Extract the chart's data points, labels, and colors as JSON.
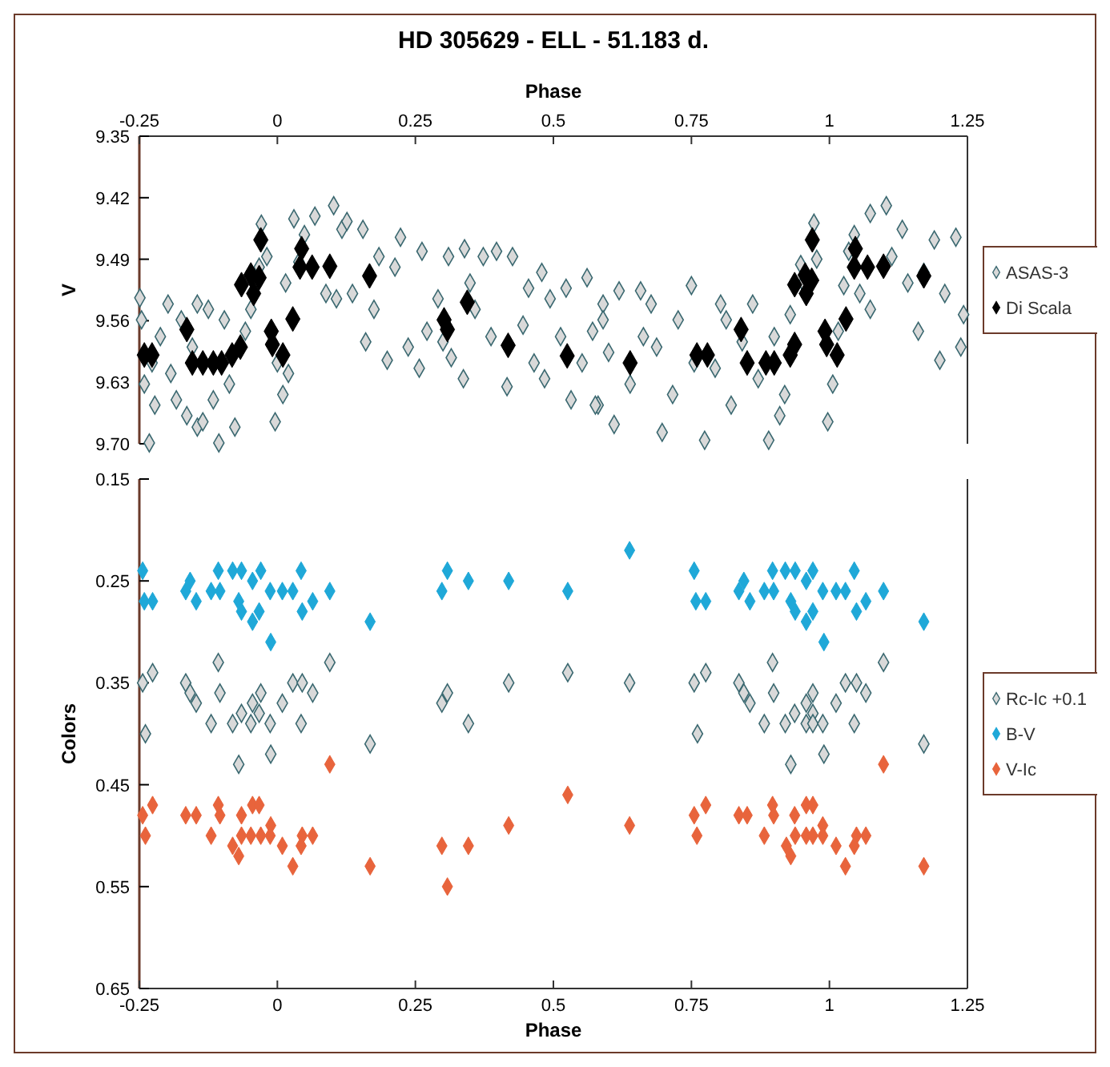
{
  "chart_data": [
    {
      "type": "scatter",
      "title": "HD 305629 - ELL - 51.183 d.",
      "xlabel": "Phase",
      "xlim": [
        -0.25,
        1.25
      ],
      "xticks": [
        -0.25,
        0,
        0.25,
        0.5,
        0.75,
        1,
        1.25
      ],
      "ylabel": "V",
      "ylim": [
        9.7,
        9.35
      ],
      "yticks": [
        9.35,
        9.42,
        9.49,
        9.56,
        9.63,
        {
          "value": 9.7,
          "label": "9.70"
        }
      ],
      "marker": "diamond",
      "legend": "right",
      "series": [
        {
          "name": "ASAS-3",
          "color": "#d9d9d9",
          "x": [
            -0.249,
            -0.232,
            -0.246,
            -0.241,
            -0.222,
            -0.212,
            -0.227,
            -0.198,
            -0.174,
            -0.145,
            -0.183,
            -0.164,
            -0.145,
            -0.193,
            -0.154,
            -0.135,
            -0.106,
            -0.077,
            -0.125,
            -0.096,
            -0.087,
            -0.116,
            -0.029,
            -0.019,
            -0.033,
            -0.048,
            -0.004,
            0.01,
            0.02,
            -0.058,
            0.0,
            0.015,
            0.03,
            0.068,
            0.102,
            0.049,
            0.088,
            0.039,
            0.117,
            0.107,
            0.126,
            0.155,
            0.184,
            0.16,
            0.199,
            0.213,
            0.175,
            0.136,
            0.223,
            0.262,
            0.271,
            0.3,
            0.237,
            0.257,
            0.291,
            0.31,
            0.339,
            0.373,
            0.397,
            0.337,
            0.315,
            0.358,
            0.387,
            0.349,
            0.426,
            0.416,
            0.445,
            0.465,
            0.484,
            0.479,
            0.494,
            0.455,
            0.532,
            0.561,
            0.581,
            0.59,
            0.513,
            0.552,
            0.571,
            0.523,
            0.576,
            0.61,
            0.619,
            0.658,
            0.59,
            0.639,
            0.6,
            0.663,
            0.697,
            0.75,
            0.677,
            0.716,
            0.726,
            0.755,
            0.687,
            0.774,
            0.803,
            0.861,
            0.822,
            0.793,
            0.842,
            0.813,
            0.89,
            0.91,
            0.871,
            0.9,
            0.929,
            0.948,
            0.953,
            0.919,
            0.972,
            0.977,
            0.997,
            1.006,
            1.026,
            1.035,
            1.016,
            1.045,
            1.074,
            1.103,
            1.132,
            1.055,
            1.074,
            1.113,
            1.142,
            1.161,
            1.2,
            1.238,
            1.19,
            1.229,
            1.209,
            1.243,
            1.171
          ],
          "values": [
            9.534,
            9.699,
            9.559,
            9.632,
            9.656,
            9.578,
            9.608,
            9.541,
            9.559,
            9.541,
            9.65,
            9.668,
            9.681,
            9.62,
            9.59,
            9.675,
            9.699,
            9.681,
            9.547,
            9.559,
            9.632,
            9.65,
            9.45,
            9.487,
            9.499,
            9.547,
            9.675,
            9.644,
            9.62,
            9.572,
            9.608,
            9.517,
            9.444,
            9.441,
            9.429,
            9.462,
            9.529,
            9.493,
            9.456,
            9.535,
            9.447,
            9.456,
            9.487,
            9.584,
            9.605,
            9.499,
            9.547,
            9.529,
            9.465,
            9.481,
            9.572,
            9.584,
            9.59,
            9.614,
            9.535,
            9.487,
            9.478,
            9.487,
            9.481,
            9.626,
            9.602,
            9.547,
            9.578,
            9.517,
            9.487,
            9.635,
            9.565,
            9.608,
            9.626,
            9.505,
            9.535,
            9.523,
            9.65,
            9.511,
            9.656,
            9.541,
            9.578,
            9.608,
            9.572,
            9.523,
            9.656,
            9.678,
            9.526,
            9.526,
            9.559,
            9.632,
            9.596,
            9.578,
            9.687,
            9.52,
            9.541,
            9.644,
            9.559,
            9.608,
            9.59,
            9.696,
            9.541,
            9.541,
            9.656,
            9.614,
            9.584,
            9.559,
            9.696,
            9.668,
            9.626,
            9.578,
            9.553,
            9.496,
            9.517,
            9.644,
            9.449,
            9.49,
            9.675,
            9.632,
            9.52,
            9.481,
            9.572,
            9.462,
            9.438,
            9.429,
            9.456,
            9.529,
            9.547,
            9.487,
            9.517,
            9.572,
            9.605,
            9.59,
            9.468,
            9.465,
            9.529,
            9.553,
            9.505
          ]
        },
        {
          "name": "Di Scala",
          "color": "#000000",
          "x": [
            -0.241,
            -0.227,
            -0.164,
            -0.154,
            -0.135,
            -0.116,
            -0.101,
            -0.082,
            -0.067,
            -0.065,
            -0.048,
            -0.033,
            -0.043,
            -0.03,
            -0.011,
            -0.009,
            0.01,
            0.028,
            0.044,
            0.041,
            0.063,
            0.095,
            0.167,
            0.302,
            0.308,
            0.344,
            0.418,
            0.525,
            0.639,
            0.76,
            0.779,
            0.84,
            0.851,
            0.885,
            0.9,
            0.929,
            0.937,
            0.937,
            0.956,
            0.968,
            0.958,
            0.969,
            0.992,
            0.995,
            1.014,
            1.03,
            1.047,
            1.045,
            1.069,
            1.098,
            1.171
          ],
          "values": [
            9.599,
            9.599,
            9.57,
            9.608,
            9.608,
            9.608,
            9.608,
            9.599,
            9.59,
            9.519,
            9.508,
            9.511,
            9.529,
            9.468,
            9.572,
            9.587,
            9.599,
            9.558,
            9.478,
            9.499,
            9.499,
            9.498,
            9.509,
            9.559,
            9.57,
            9.539,
            9.588,
            9.6,
            9.608,
            9.599,
            9.599,
            9.57,
            9.608,
            9.608,
            9.608,
            9.599,
            9.587,
            9.519,
            9.508,
            9.514,
            9.529,
            9.468,
            9.572,
            9.587,
            9.599,
            9.558,
            9.478,
            9.499,
            9.499,
            9.498,
            9.509
          ]
        }
      ]
    },
    {
      "type": "scatter",
      "xlabel": "Phase",
      "xlim": [
        -0.25,
        1.25
      ],
      "xticks": [
        -0.25,
        0,
        0.25,
        0.5,
        0.75,
        1,
        1.25
      ],
      "ylabel": "Colors",
      "ylim": [
        0.65,
        0.15
      ],
      "yticks": [
        0.15,
        0.25,
        0.35,
        0.45,
        0.55,
        0.65
      ],
      "marker": "diamond",
      "legend": "right",
      "series": [
        {
          "name": "Rc-Ic +0.1",
          "color": "#d9d9d9",
          "x": [
            -0.107,
            0.095,
            -0.226,
            0.526,
            -0.244,
            -0.166,
            0.028,
            0.045,
            0.419,
            -0.158,
            -0.104,
            -0.03,
            0.064,
            0.308,
            -0.147,
            -0.045,
            0.009,
            0.298,
            -0.065,
            -0.033,
            -0.12,
            -0.081,
            -0.048,
            -0.013,
            0.043,
            0.346,
            -0.239,
            0.168,
            -0.012,
            -0.07,
            0.897,
            1.098,
            0.776,
            0.638,
            0.755,
            0.836,
            1.029,
            1.049,
            0.845,
            0.899,
            0.97,
            1.066,
            0.856,
            0.958,
            1.012,
            0.937,
            0.97,
            0.882,
            0.92,
            0.958,
            0.97,
            0.988,
            1.045,
            0.761,
            1.171,
            0.99,
            0.93
          ],
          "values": [
            0.33,
            0.33,
            0.34,
            0.34,
            0.35,
            0.35,
            0.35,
            0.35,
            0.35,
            0.36,
            0.36,
            0.36,
            0.36,
            0.36,
            0.37,
            0.37,
            0.37,
            0.37,
            0.38,
            0.38,
            0.39,
            0.39,
            0.39,
            0.39,
            0.39,
            0.39,
            0.4,
            0.41,
            0.42,
            0.43,
            0.33,
            0.33,
            0.34,
            0.35,
            0.35,
            0.35,
            0.35,
            0.35,
            0.36,
            0.36,
            0.36,
            0.36,
            0.37,
            0.37,
            0.37,
            0.38,
            0.38,
            0.39,
            0.39,
            0.39,
            0.39,
            0.39,
            0.39,
            0.4,
            0.41,
            0.42,
            0.43
          ]
        },
        {
          "name": "B-V",
          "color": "#1fa8d8",
          "x": [
            -0.244,
            -0.107,
            -0.081,
            -0.065,
            -0.03,
            0.043,
            0.308,
            -0.158,
            -0.045,
            0.346,
            0.419,
            -0.166,
            -0.12,
            -0.104,
            -0.013,
            0.009,
            0.028,
            0.095,
            0.298,
            0.526,
            -0.241,
            -0.226,
            -0.147,
            -0.07,
            0.064,
            -0.065,
            -0.033,
            0.045,
            -0.045,
            0.168,
            -0.012,
            0.638,
            0.755,
            0.897,
            0.92,
            0.938,
            0.97,
            1.045,
            0.845,
            0.958,
            0.836,
            0.882,
            0.899,
            0.988,
            1.012,
            1.029,
            1.098,
            0.758,
            0.776,
            0.856,
            0.93,
            1.066,
            0.938,
            0.97,
            1.049,
            0.958,
            1.171,
            0.99
          ],
          "values": [
            0.24,
            0.24,
            0.24,
            0.24,
            0.24,
            0.24,
            0.24,
            0.25,
            0.25,
            0.25,
            0.25,
            0.26,
            0.26,
            0.26,
            0.26,
            0.26,
            0.26,
            0.26,
            0.26,
            0.26,
            0.27,
            0.27,
            0.27,
            0.27,
            0.27,
            0.28,
            0.28,
            0.28,
            0.29,
            0.29,
            0.31,
            0.22,
            0.24,
            0.24,
            0.24,
            0.24,
            0.24,
            0.24,
            0.25,
            0.25,
            0.26,
            0.26,
            0.26,
            0.26,
            0.26,
            0.26,
            0.26,
            0.27,
            0.27,
            0.27,
            0.27,
            0.27,
            0.28,
            0.28,
            0.28,
            0.29,
            0.29,
            0.31
          ]
        },
        {
          "name": "V-Ic",
          "color": "#e8643c",
          "x": [
            0.095,
            0.526,
            -0.226,
            -0.107,
            -0.045,
            -0.033,
            -0.244,
            -0.166,
            -0.147,
            -0.104,
            -0.065,
            -0.012,
            0.419,
            -0.239,
            -0.12,
            -0.065,
            -0.048,
            -0.03,
            -0.013,
            0.045,
            0.064,
            -0.081,
            0.009,
            0.043,
            0.298,
            0.346,
            -0.07,
            0.028,
            0.168,
            0.308,
            1.098,
            0.776,
            0.897,
            0.958,
            0.97,
            0.755,
            0.836,
            0.851,
            0.899,
            0.937,
            0.638,
            0.988,
            0.76,
            0.882,
            0.938,
            0.958,
            0.97,
            0.988,
            1.049,
            1.066,
            0.922,
            1.012,
            1.045,
            0.93,
            1.029,
            1.171
          ],
          "values": [
            0.43,
            0.46,
            0.47,
            0.47,
            0.47,
            0.47,
            0.48,
            0.48,
            0.48,
            0.48,
            0.48,
            0.49,
            0.49,
            0.5,
            0.5,
            0.5,
            0.5,
            0.5,
            0.5,
            0.5,
            0.5,
            0.51,
            0.51,
            0.51,
            0.51,
            0.51,
            0.52,
            0.53,
            0.53,
            0.55,
            0.43,
            0.47,
            0.47,
            0.47,
            0.47,
            0.48,
            0.48,
            0.48,
            0.48,
            0.48,
            0.49,
            0.49,
            0.5,
            0.5,
            0.5,
            0.5,
            0.5,
            0.5,
            0.5,
            0.5,
            0.51,
            0.51,
            0.51,
            0.52,
            0.53,
            0.53
          ]
        }
      ]
    }
  ]
}
